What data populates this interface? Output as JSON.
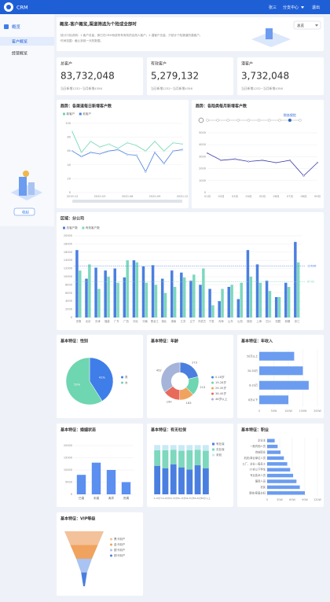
{
  "topbar": {
    "logo": "CRM",
    "user": "张三",
    "branch": "分支中心",
    "logout": "退出"
  },
  "sidebar": {
    "section": "概览",
    "items": [
      "客户概览",
      "经营概览"
    ],
    "collapse": "收起"
  },
  "header": {
    "title": "概览-客户概览,渠道筛选为个险或全部时",
    "notes": [
      "·统计口径说明：1.客户总量，即已在CRM系统所有有效的自然人客户；2.潜客户总量，只统计个险渠道的潜客户。",
      "·时间范围：截止到前一天的数据。"
    ],
    "select": "总览"
  },
  "kpis": [
    {
      "label": "总客户",
      "value": "83,732,048",
      "sub": "当日新增1232~当月新增4356"
    },
    {
      "label": "有效客户",
      "value": "5,279,132",
      "sub": "当日新增1232~当月新增4356"
    },
    {
      "label": "潜客户",
      "value": "3,732,048",
      "sub": "当日新增1232~当月新增4356"
    }
  ],
  "chart_data": [
    {
      "type": "line",
      "title": "趋势：各渠道每日新增客户数",
      "categories": [
        "2019-12",
        null,
        null,
        "2020-03",
        null,
        null,
        "2020-06",
        null,
        null,
        "2020-09",
        null,
        null,
        "2020-12"
      ],
      "series": [
        {
          "name": "新客户",
          "color": "#6ed6b0",
          "values": [
            88,
            58,
            74,
            66,
            70,
            64,
            72,
            68,
            60,
            74,
            60,
            72,
            70
          ]
        },
        {
          "name": "老客户",
          "color": "#4a7fe0",
          "values": [
            60,
            52,
            58,
            56,
            60,
            62,
            55,
            54,
            30,
            58,
            42,
            60,
            62
          ]
        }
      ],
      "ylim": [
        0,
        100
      ],
      "yticks": [
        0,
        20,
        40,
        60,
        80,
        100
      ],
      "grid": true
    },
    {
      "type": "line",
      "title": "趋势：各险类每月新增客户数",
      "annotation": "财务保险",
      "categories": [
        "01月",
        "02月",
        "03月",
        "04月",
        "05月",
        "06月",
        "07月",
        "08月",
        "09月"
      ],
      "series": [
        {
          "name": null,
          "color": "#3b3ea8",
          "values": [
            3300,
            2700,
            2800,
            2600,
            2700,
            2500,
            2700,
            1400,
            2500
          ]
        }
      ],
      "ylim": [
        0,
        5000
      ],
      "yticks": [
        0,
        1000,
        2000,
        3000,
        4000,
        5000
      ],
      "grid": true
    },
    {
      "type": "bar",
      "title": "区域：分公司",
      "categories": [
        "安徽",
        "北京",
        "天津",
        "福建",
        "广东",
        "广西",
        "河北",
        "河南",
        "黑龙江",
        "湖北",
        "湖南",
        "江苏",
        "辽宁",
        "内蒙古",
        "宁夏",
        "青海",
        "山东",
        "山西",
        "陕西",
        "上海",
        "四川",
        "西藏",
        "新疆",
        "浙江"
      ],
      "series": [
        {
          "name": "总客户数",
          "color": "#4a7fe0",
          "values": [
            16500,
            9500,
            12200,
            11500,
            12000,
            9800,
            14000,
            12500,
            12800,
            9500,
            11500,
            11000,
            9000,
            8000,
            7000,
            4000,
            7500,
            4500,
            16500,
            13000,
            9000,
            5000,
            8500,
            18500
          ]
        },
        {
          "name": "有效客户数",
          "color": "#7dd8bd",
          "values": [
            11500,
            13000,
            7000,
            10000,
            8500,
            14000,
            13500,
            8500,
            8000,
            6000,
            7500,
            9800,
            10500,
            12000,
            3000,
            7000,
            8000,
            8500,
            10000,
            8500,
            6500,
            5000,
            7500,
            13500
          ]
        }
      ],
      "reference_lines": [
        12636,
        8742
      ],
      "ylim": [
        0,
        20000
      ],
      "yticks": [
        0,
        2000,
        4000,
        6000,
        8000,
        10000,
        12000,
        14000,
        16000,
        18000,
        20000
      ],
      "grid": true
    },
    {
      "type": "pie",
      "title": "基本特征：性别",
      "categories": [
        "男",
        "女"
      ],
      "values": [
        41,
        59
      ],
      "value_labels": [
        "41%",
        "59%"
      ],
      "colors": [
        "#3f7ee8",
        "#6ed6b0"
      ]
    },
    {
      "type": "donut",
      "title": "基本特征：年龄",
      "categories": [
        "0-18岁",
        "19-28岁",
        "29-35岁",
        "36-45岁",
        "46岁以上"
      ],
      "values": [
        273,
        213,
        163,
        190,
        452
      ],
      "colors": [
        "#4a7fe0",
        "#6ed6b0",
        "#f0a35e",
        "#e86a5a",
        "#a5b4d8"
      ]
    },
    {
      "type": "hbar",
      "title": "基本特征：年收入",
      "categories": [
        "50万以上",
        "20-50万",
        "8-20万",
        "8万以下"
      ],
      "values": [
        120,
        150,
        170,
        100
      ],
      "color": "#6b9cf0",
      "xlim": [
        0,
        200
      ],
      "xticks": [
        0,
        {
          "value": 50,
          "label": "50W"
        },
        {
          "value": 100,
          "label": "100W"
        },
        {
          "value": 150,
          "label": "150W"
        },
        {
          "value": 200,
          "label": "200W"
        }
      ],
      "grid": true
    },
    {
      "type": "vbar",
      "title": "基本特征：婚姻状态",
      "categories": [
        "已婚",
        "未婚",
        "离异",
        "丧偶"
      ],
      "values": [
        8000,
        13000,
        10000,
        5000
      ],
      "color": "#5b8ff0",
      "ylim": [
        0,
        20000
      ],
      "yticks": [
        0,
        5000,
        10000,
        15000,
        20000
      ],
      "grid": true
    },
    {
      "type": "stacked",
      "title": "基本特征：有无社保",
      "categories": [
        "0-18岁",
        "19-28岁",
        "29-35岁",
        "36-45岁",
        "46-55岁",
        "56-65岁",
        "66岁以上"
      ],
      "series": [
        {
          "name": "有社保",
          "color": "#4a7fe0",
          "values": [
            55,
            50,
            58,
            52,
            48,
            56,
            50
          ]
        },
        {
          "name": "无社保",
          "color": "#7dd8bd",
          "values": [
            30,
            35,
            28,
            32,
            37,
            30,
            34
          ]
        },
        {
          "name": "未知",
          "color": "#c8e9f5",
          "values": [
            10,
            10,
            9,
            11,
            10,
            9,
            11
          ]
        }
      ],
      "ylim": [
        0,
        100
      ]
    },
    {
      "type": "hbar",
      "title": "基本特征：职业",
      "categories": [
        "企业主",
        "一般内勤人员",
        "自由职业",
        "机关/事业单位人员",
        "工厂、企业一般员工",
        "17岁以下学生",
        "专业技术人员",
        "服务人员",
        "农民",
        "退休/家庭主妇"
      ],
      "values": [
        18,
        25,
        32,
        40,
        48,
        55,
        62,
        70,
        78,
        90
      ],
      "color": "#6b9cf0",
      "xlim": [
        0,
        120
      ],
      "xticks": [
        0,
        {
          "value": 30,
          "label": "30W"
        },
        {
          "value": 60,
          "label": "60W"
        },
        {
          "value": 90,
          "label": "90W"
        },
        {
          "value": 120,
          "label": "120W"
        }
      ],
      "grid": true
    },
    {
      "type": "funnel",
      "title": "基本特征：VIP等级",
      "categories": [
        "黑卡用户",
        "金卡用户",
        "银卡用户",
        "铜卡用户"
      ],
      "values": [
        100,
        70,
        40,
        15
      ],
      "colors": [
        "#f3c19a",
        "#f0a35e",
        "#a9c3f2",
        "#4a7fe0"
      ]
    }
  ]
}
